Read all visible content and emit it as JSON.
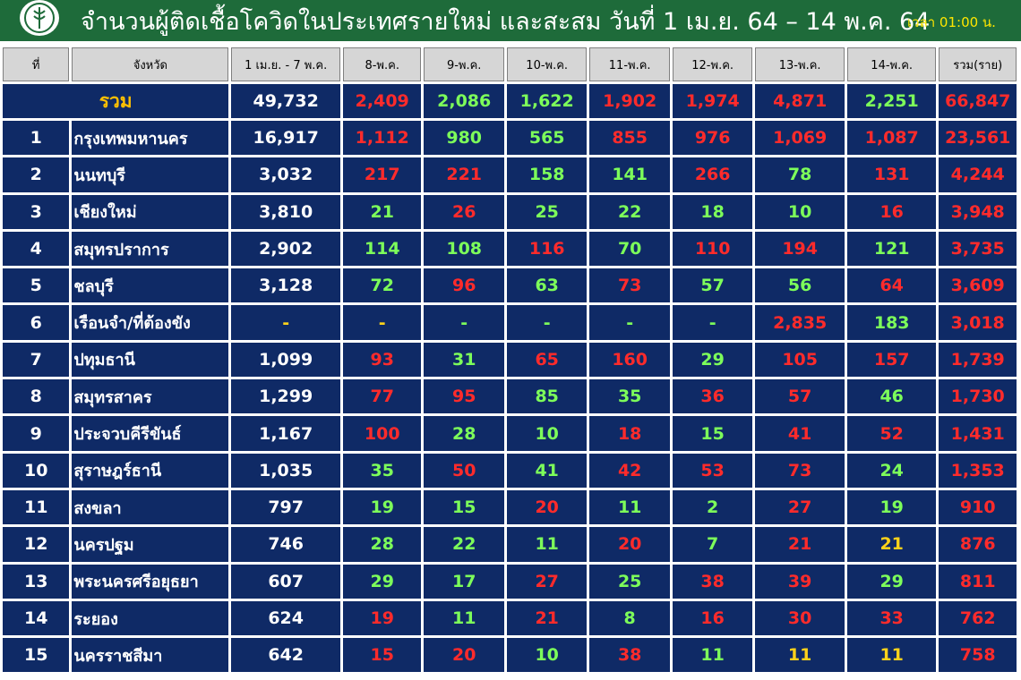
{
  "header": {
    "title": "จำนวนผู้ติดเชื้อโควิดในประเทศรายใหม่ และสะสม วันที่ 1 เม.ย. 64 – 14 พ.ค. 64",
    "time": "เวลา 01:00 น."
  },
  "colors": {
    "header_bg": "#1e6b3a",
    "table_bg": "#0f2a66",
    "increase": "#ff2b2b",
    "decrease": "#7dff5a",
    "same": "#ffd21a",
    "total_label": "#ffc000"
  },
  "columns": [
    "ที่",
    "จังหวัด",
    "1 เม.ย. - 7 พ.ค.",
    "8-พ.ค.",
    "9-พ.ค.",
    "10-พ.ค.",
    "11-พ.ค.",
    "12-พ.ค.",
    "13-พ.ค.",
    "14-พ.ค.",
    "รวม(ราย)"
  ],
  "total": {
    "label": "รวม",
    "cells": [
      {
        "v": "49,732",
        "c": "w"
      },
      {
        "v": "2,409",
        "c": "r"
      },
      {
        "v": "2,086",
        "c": "g"
      },
      {
        "v": "1,622",
        "c": "g"
      },
      {
        "v": "1,902",
        "c": "r"
      },
      {
        "v": "1,974",
        "c": "r"
      },
      {
        "v": "4,871",
        "c": "r"
      },
      {
        "v": "2,251",
        "c": "g"
      },
      {
        "v": "66,847",
        "c": "r"
      }
    ]
  },
  "rows": [
    {
      "no": "1",
      "province": "กรุงเทพมหานคร",
      "cells": [
        {
          "v": "16,917",
          "c": "w"
        },
        {
          "v": "1,112",
          "c": "r"
        },
        {
          "v": "980",
          "c": "g"
        },
        {
          "v": "565",
          "c": "g"
        },
        {
          "v": "855",
          "c": "r"
        },
        {
          "v": "976",
          "c": "r"
        },
        {
          "v": "1,069",
          "c": "r"
        },
        {
          "v": "1,087",
          "c": "r"
        },
        {
          "v": "23,561",
          "c": "r"
        }
      ]
    },
    {
      "no": "2",
      "province": "นนทบุรี",
      "cells": [
        {
          "v": "3,032",
          "c": "w"
        },
        {
          "v": "217",
          "c": "r"
        },
        {
          "v": "221",
          "c": "r"
        },
        {
          "v": "158",
          "c": "g"
        },
        {
          "v": "141",
          "c": "g"
        },
        {
          "v": "266",
          "c": "r"
        },
        {
          "v": "78",
          "c": "g"
        },
        {
          "v": "131",
          "c": "r"
        },
        {
          "v": "4,244",
          "c": "r"
        }
      ]
    },
    {
      "no": "3",
      "province": "เชียงใหม่",
      "cells": [
        {
          "v": "3,810",
          "c": "w"
        },
        {
          "v": "21",
          "c": "g"
        },
        {
          "v": "26",
          "c": "r"
        },
        {
          "v": "25",
          "c": "g"
        },
        {
          "v": "22",
          "c": "g"
        },
        {
          "v": "18",
          "c": "g"
        },
        {
          "v": "10",
          "c": "g"
        },
        {
          "v": "16",
          "c": "r"
        },
        {
          "v": "3,948",
          "c": "r"
        }
      ]
    },
    {
      "no": "4",
      "province": "สมุทรปราการ",
      "cells": [
        {
          "v": "2,902",
          "c": "w"
        },
        {
          "v": "114",
          "c": "g"
        },
        {
          "v": "108",
          "c": "g"
        },
        {
          "v": "116",
          "c": "r"
        },
        {
          "v": "70",
          "c": "g"
        },
        {
          "v": "110",
          "c": "r"
        },
        {
          "v": "194",
          "c": "r"
        },
        {
          "v": "121",
          "c": "g"
        },
        {
          "v": "3,735",
          "c": "r"
        }
      ]
    },
    {
      "no": "5",
      "province": "ชลบุรี",
      "cells": [
        {
          "v": "3,128",
          "c": "w"
        },
        {
          "v": "72",
          "c": "g"
        },
        {
          "v": "96",
          "c": "r"
        },
        {
          "v": "63",
          "c": "g"
        },
        {
          "v": "73",
          "c": "r"
        },
        {
          "v": "57",
          "c": "g"
        },
        {
          "v": "56",
          "c": "g"
        },
        {
          "v": "64",
          "c": "r"
        },
        {
          "v": "3,609",
          "c": "r"
        }
      ]
    },
    {
      "no": "6",
      "province": "เรือนจำ/ที่ต้องขัง",
      "cells": [
        {
          "v": "-",
          "c": "y"
        },
        {
          "v": "-",
          "c": "y"
        },
        {
          "v": "-",
          "c": "g"
        },
        {
          "v": "-",
          "c": "g"
        },
        {
          "v": "-",
          "c": "g"
        },
        {
          "v": "-",
          "c": "g"
        },
        {
          "v": "2,835",
          "c": "r"
        },
        {
          "v": "183",
          "c": "g"
        },
        {
          "v": "3,018",
          "c": "r"
        }
      ]
    },
    {
      "no": "7",
      "province": "ปทุมธานี",
      "cells": [
        {
          "v": "1,099",
          "c": "w"
        },
        {
          "v": "93",
          "c": "r"
        },
        {
          "v": "31",
          "c": "g"
        },
        {
          "v": "65",
          "c": "r"
        },
        {
          "v": "160",
          "c": "r"
        },
        {
          "v": "29",
          "c": "g"
        },
        {
          "v": "105",
          "c": "r"
        },
        {
          "v": "157",
          "c": "r"
        },
        {
          "v": "1,739",
          "c": "r"
        }
      ]
    },
    {
      "no": "8",
      "province": "สมุทรสาคร",
      "cells": [
        {
          "v": "1,299",
          "c": "w"
        },
        {
          "v": "77",
          "c": "r"
        },
        {
          "v": "95",
          "c": "r"
        },
        {
          "v": "85",
          "c": "g"
        },
        {
          "v": "35",
          "c": "g"
        },
        {
          "v": "36",
          "c": "r"
        },
        {
          "v": "57",
          "c": "r"
        },
        {
          "v": "46",
          "c": "g"
        },
        {
          "v": "1,730",
          "c": "r"
        }
      ]
    },
    {
      "no": "9",
      "province": "ประจวบคีรีขันธ์",
      "cells": [
        {
          "v": "1,167",
          "c": "w"
        },
        {
          "v": "100",
          "c": "r"
        },
        {
          "v": "28",
          "c": "g"
        },
        {
          "v": "10",
          "c": "g"
        },
        {
          "v": "18",
          "c": "r"
        },
        {
          "v": "15",
          "c": "g"
        },
        {
          "v": "41",
          "c": "r"
        },
        {
          "v": "52",
          "c": "r"
        },
        {
          "v": "1,431",
          "c": "r"
        }
      ]
    },
    {
      "no": "10",
      "province": "สุราษฎร์ธานี",
      "cells": [
        {
          "v": "1,035",
          "c": "w"
        },
        {
          "v": "35",
          "c": "g"
        },
        {
          "v": "50",
          "c": "r"
        },
        {
          "v": "41",
          "c": "g"
        },
        {
          "v": "42",
          "c": "r"
        },
        {
          "v": "53",
          "c": "r"
        },
        {
          "v": "73",
          "c": "r"
        },
        {
          "v": "24",
          "c": "g"
        },
        {
          "v": "1,353",
          "c": "r"
        }
      ]
    },
    {
      "no": "11",
      "province": "สงขลา",
      "cells": [
        {
          "v": "797",
          "c": "w"
        },
        {
          "v": "19",
          "c": "g"
        },
        {
          "v": "15",
          "c": "g"
        },
        {
          "v": "20",
          "c": "r"
        },
        {
          "v": "11",
          "c": "g"
        },
        {
          "v": "2",
          "c": "g"
        },
        {
          "v": "27",
          "c": "r"
        },
        {
          "v": "19",
          "c": "g"
        },
        {
          "v": "910",
          "c": "r"
        }
      ]
    },
    {
      "no": "12",
      "province": "นครปฐม",
      "cells": [
        {
          "v": "746",
          "c": "w"
        },
        {
          "v": "28",
          "c": "g"
        },
        {
          "v": "22",
          "c": "g"
        },
        {
          "v": "11",
          "c": "g"
        },
        {
          "v": "20",
          "c": "r"
        },
        {
          "v": "7",
          "c": "g"
        },
        {
          "v": "21",
          "c": "r"
        },
        {
          "v": "21",
          "c": "y"
        },
        {
          "v": "876",
          "c": "r"
        }
      ]
    },
    {
      "no": "13",
      "province": "พระนครศรีอยุธยา",
      "cells": [
        {
          "v": "607",
          "c": "w"
        },
        {
          "v": "29",
          "c": "g"
        },
        {
          "v": "17",
          "c": "g"
        },
        {
          "v": "27",
          "c": "r"
        },
        {
          "v": "25",
          "c": "g"
        },
        {
          "v": "38",
          "c": "r"
        },
        {
          "v": "39",
          "c": "r"
        },
        {
          "v": "29",
          "c": "g"
        },
        {
          "v": "811",
          "c": "r"
        }
      ]
    },
    {
      "no": "14",
      "province": "ระยอง",
      "cells": [
        {
          "v": "624",
          "c": "w"
        },
        {
          "v": "19",
          "c": "r"
        },
        {
          "v": "11",
          "c": "g"
        },
        {
          "v": "21",
          "c": "r"
        },
        {
          "v": "8",
          "c": "g"
        },
        {
          "v": "16",
          "c": "r"
        },
        {
          "v": "30",
          "c": "r"
        },
        {
          "v": "33",
          "c": "r"
        },
        {
          "v": "762",
          "c": "r"
        }
      ]
    },
    {
      "no": "15",
      "province": "นครราชสีมา",
      "cells": [
        {
          "v": "642",
          "c": "w"
        },
        {
          "v": "15",
          "c": "r"
        },
        {
          "v": "20",
          "c": "r"
        },
        {
          "v": "10",
          "c": "g"
        },
        {
          "v": "38",
          "c": "r"
        },
        {
          "v": "11",
          "c": "g"
        },
        {
          "v": "11",
          "c": "y"
        },
        {
          "v": "11",
          "c": "y"
        },
        {
          "v": "758",
          "c": "r"
        }
      ]
    }
  ]
}
